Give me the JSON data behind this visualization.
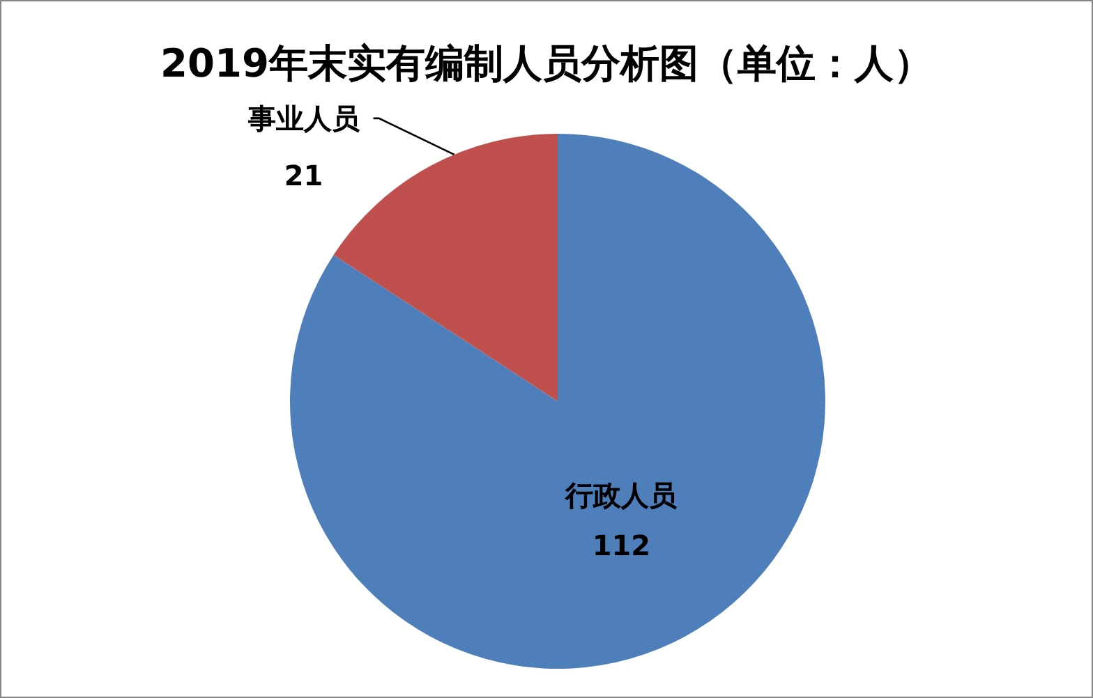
{
  "chart_data": {
    "type": "pie",
    "title": "2019年末实有编制人员分析图（单位：人）",
    "categories": [
      "行政人员",
      "事业人员"
    ],
    "values": [
      112,
      21
    ],
    "colors": [
      "#4f7fbb",
      "#c0504d"
    ],
    "data_labels": true
  }
}
